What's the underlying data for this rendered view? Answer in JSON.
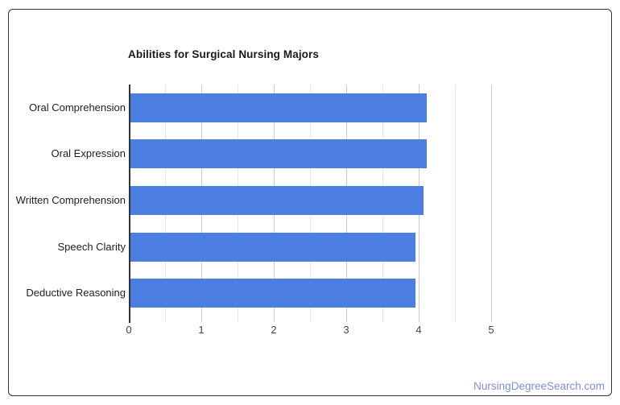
{
  "chart_data": {
    "type": "bar",
    "orientation": "horizontal",
    "title": "Abilities for Surgical Nursing Majors",
    "categories": [
      "Oral Comprehension",
      "Oral Expression",
      "Written Comprehension",
      "Speech Clarity",
      "Deductive Reasoning"
    ],
    "values": [
      4.1,
      4.1,
      4.06,
      3.94,
      3.94
    ],
    "xlabel": "",
    "ylabel": "",
    "xlim": [
      0,
      5
    ],
    "x_ticks": [
      "0",
      "1",
      "2",
      "3",
      "4",
      "5"
    ],
    "minor_tick_step": 0.5,
    "grid": true,
    "legend": "none",
    "bar_color": "#4d7fe3"
  },
  "footer": {
    "link_text": "NursingDegreeSearch.com",
    "link_color": "#7e90d2"
  }
}
